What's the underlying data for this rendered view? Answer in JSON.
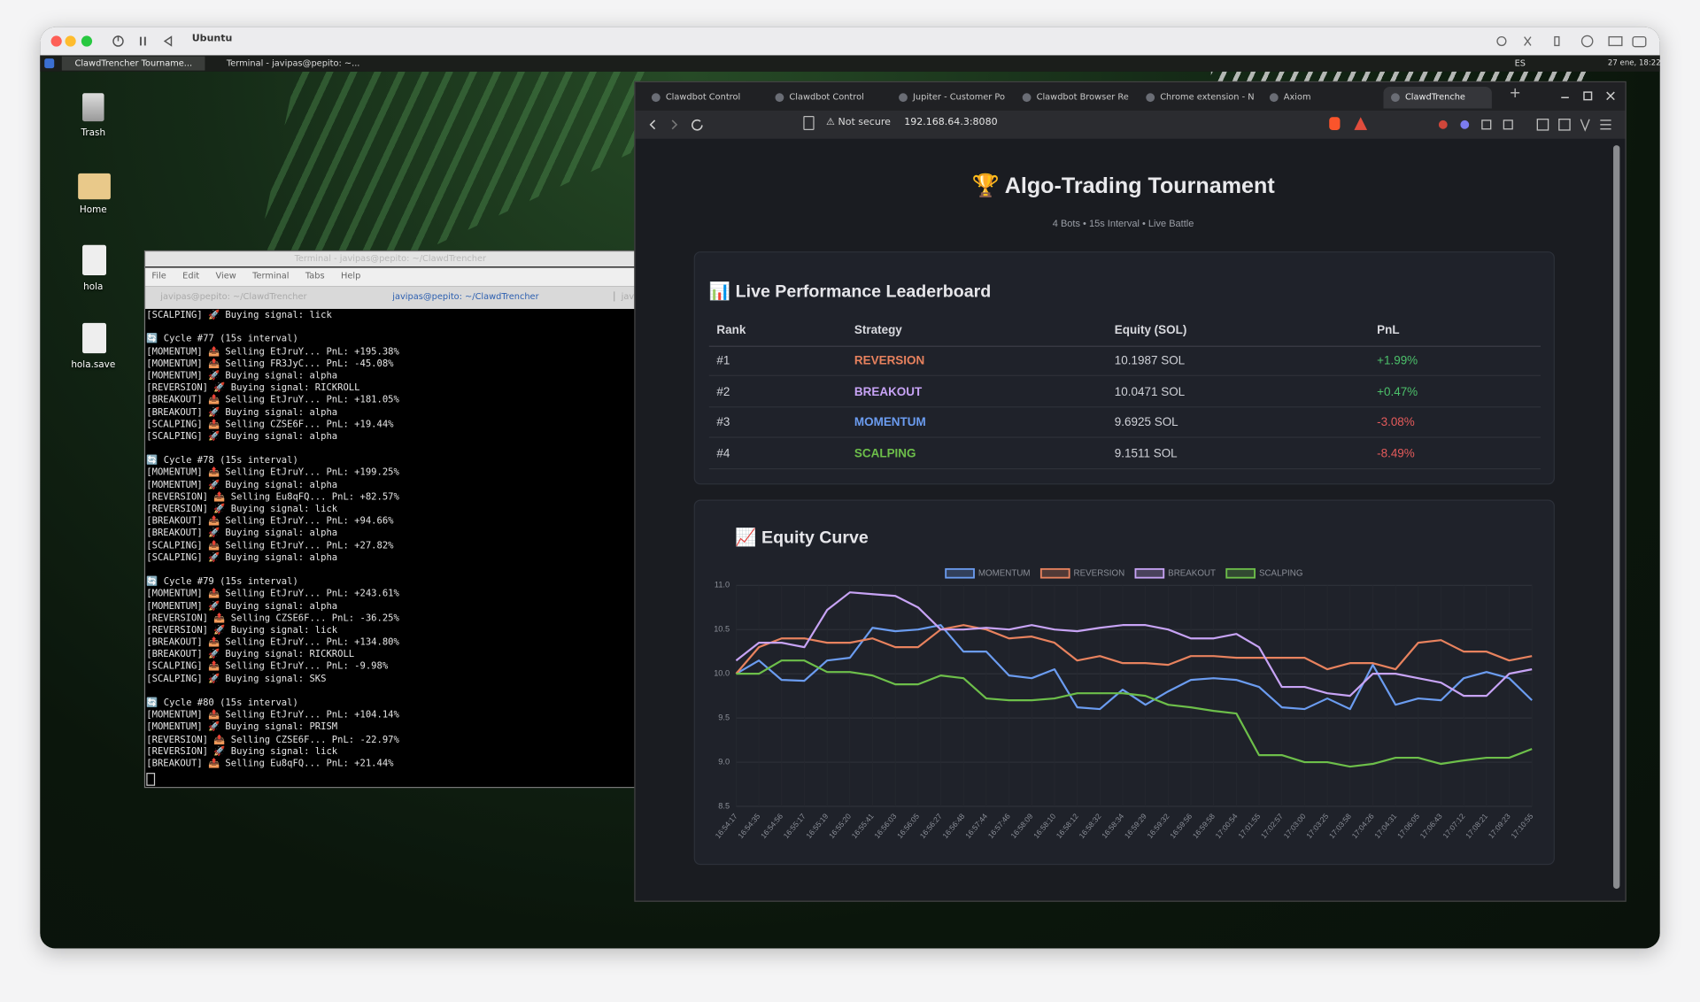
{
  "mac_bar": {
    "title": "Ubuntu"
  },
  "taskbar": {
    "items": [
      "ClawdTrencher Tourname...",
      "Terminal - javipas@pepito: ~..."
    ],
    "keyboard": "ES",
    "clock": "27 ene, 18:22"
  },
  "desktop_icons": [
    "Trash",
    "Home",
    "hola",
    "hola.save"
  ],
  "terminal": {
    "title": "Terminal - javipas@pepito: ~/ClawdTrencher",
    "menu": [
      "File",
      "Edit",
      "View",
      "Terminal",
      "Tabs",
      "Help"
    ],
    "tabs": [
      "javipas@pepito: ~/ClawdTrencher",
      "javipas@pepito: ~/ClawdTrencher",
      "jav"
    ],
    "blocks": [
      [
        "[SCALPING] 🚀 Buying signal: lick"
      ],
      [
        "🔄 Cycle #77 (15s interval)",
        "[MOMENTUM] 📤 Selling EtJruY... PnL: +195.38%",
        "[MOMENTUM] 📤 Selling FR3JyC... PnL: -45.08%",
        "[MOMENTUM] 🚀 Buying signal: alpha",
        "[REVERSION] 🚀 Buying signal: RICKROLL",
        "[BREAKOUT] 📤 Selling EtJruY... PnL: +181.05%",
        "[BREAKOUT] 🚀 Buying signal: alpha",
        "[SCALPING] 📤 Selling CZSE6F... PnL: +19.44%",
        "[SCALPING] 🚀 Buying signal: alpha"
      ],
      [
        "🔄 Cycle #78 (15s interval)",
        "[MOMENTUM] 📤 Selling EtJruY... PnL: +199.25%",
        "[MOMENTUM] 🚀 Buying signal: alpha",
        "[REVERSION] 📤 Selling Eu8qFQ... PnL: +82.57%",
        "[REVERSION] 🚀 Buying signal: lick",
        "[BREAKOUT] 📤 Selling EtJruY... PnL: +94.66%",
        "[BREAKOUT] 🚀 Buying signal: alpha",
        "[SCALPING] 📤 Selling EtJruY... PnL: +27.82%",
        "[SCALPING] 🚀 Buying signal: alpha"
      ],
      [
        "🔄 Cycle #79 (15s interval)",
        "[MOMENTUM] 📤 Selling EtJruY... PnL: +243.61%",
        "[MOMENTUM] 🚀 Buying signal: alpha",
        "[REVERSION] 📤 Selling CZSE6F... PnL: -36.25%",
        "[REVERSION] 🚀 Buying signal: lick",
        "[BREAKOUT] 📤 Selling EtJruY... PnL: +134.80%",
        "[BREAKOUT] 🚀 Buying signal: RICKROLL",
        "[SCALPING] 📤 Selling EtJruY... PnL: -9.98%",
        "[SCALPING] 🚀 Buying signal: SKS"
      ],
      [
        "🔄 Cycle #80 (15s interval)",
        "[MOMENTUM] 📤 Selling EtJruY... PnL: +104.14%",
        "[MOMENTUM] 🚀 Buying signal: PRISM",
        "[REVERSION] 📤 Selling CZSE6F... PnL: -22.97%",
        "[REVERSION] 🚀 Buying signal: lick",
        "[BREAKOUT] 📤 Selling Eu8qFQ... PnL: +21.44%"
      ]
    ]
  },
  "browser": {
    "tabs": [
      "Clawdbot Control",
      "Clawdbot Control",
      "Jupiter - Customer Po",
      "Clawdbot Browser Re",
      "Chrome extension - N",
      "Axiom",
      "ClawdTrenche"
    ],
    "security": "Not secure",
    "url": "192.168.64.3:8080"
  },
  "page": {
    "title": "🏆 Algo-Trading Tournament",
    "subtitle": "4 Bots • 15s Interval • Live Battle",
    "leaderboard": {
      "heading": "📊 Live Performance Leaderboard",
      "columns": [
        "Rank",
        "Strategy",
        "Equity (SOL)",
        "PnL"
      ],
      "rows": [
        [
          "#1",
          "REVERSION",
          "10.1987 SOL",
          "+1.99%"
        ],
        [
          "#2",
          "BREAKOUT",
          "10.0471 SOL",
          "+0.47%"
        ],
        [
          "#3",
          "MOMENTUM",
          "9.6925 SOL",
          "-3.08%"
        ],
        [
          "#4",
          "SCALPING",
          "9.1511 SOL",
          "-8.49%"
        ]
      ]
    }
  },
  "equity_chart": {
    "type": "line",
    "title": "📈 Equity Curve",
    "categories": [
      "16:54:17",
      "16:54:35",
      "16:54:56",
      "16:55:17",
      "16:55:19",
      "16:55:20",
      "16:55:41",
      "16:56:03",
      "16:56:05",
      "16:56:27",
      "16:56:48",
      "16:57:44",
      "16:57:46",
      "16:58:09",
      "16:58:10",
      "16:58:12",
      "16:58:32",
      "16:58:34",
      "16:59:29",
      "16:59:32",
      "16:59:56",
      "16:59:58",
      "17:00:54",
      "17:01:55",
      "17:02:57",
      "17:03:00",
      "17:03:25",
      "17:03:58",
      "17:04:26",
      "17:04:31",
      "17:06:05",
      "17:06:43",
      "17:07:12",
      "17:08:21",
      "17:09:23",
      "17:10:55"
    ],
    "series": [
      {
        "name": "MOMENTUM",
        "color": "#6b9cf0",
        "values": [
          10.0,
          10.15,
          9.93,
          9.92,
          10.15,
          10.18,
          10.52,
          10.48,
          10.5,
          10.55,
          10.25,
          10.25,
          9.98,
          9.95,
          10.05,
          9.62,
          9.6,
          9.82,
          9.65,
          9.8,
          9.93,
          9.95,
          9.93,
          9.85,
          9.62,
          9.6,
          9.72,
          9.6,
          10.1,
          9.65,
          9.72,
          9.7,
          9.95,
          10.02,
          9.95,
          9.7
        ]
      },
      {
        "name": "REVERSION",
        "color": "#e8825e",
        "values": [
          10.0,
          10.3,
          10.4,
          10.4,
          10.35,
          10.35,
          10.4,
          10.3,
          10.3,
          10.5,
          10.55,
          10.5,
          10.4,
          10.42,
          10.35,
          10.15,
          10.2,
          10.12,
          10.12,
          10.1,
          10.2,
          10.2,
          10.18,
          10.18,
          10.18,
          10.18,
          10.05,
          10.12,
          10.12,
          10.05,
          10.35,
          10.38,
          10.25,
          10.25,
          10.15,
          10.2
        ]
      },
      {
        "name": "BREAKOUT",
        "color": "#c7a3f5",
        "values": [
          10.15,
          10.35,
          10.35,
          10.3,
          10.72,
          10.92,
          10.9,
          10.88,
          10.75,
          10.5,
          10.5,
          10.52,
          10.5,
          10.55,
          10.5,
          10.48,
          10.52,
          10.55,
          10.55,
          10.5,
          10.4,
          10.4,
          10.45,
          10.3,
          9.85,
          9.85,
          9.78,
          9.75,
          10.0,
          10.0,
          9.95,
          9.9,
          9.75,
          9.75,
          10.0,
          10.05
        ]
      },
      {
        "name": "SCALPING",
        "color": "#6dbf4a",
        "values": [
          10.0,
          10.0,
          10.15,
          10.15,
          10.02,
          10.02,
          9.98,
          9.88,
          9.88,
          9.98,
          9.95,
          9.72,
          9.7,
          9.7,
          9.72,
          9.78,
          9.78,
          9.78,
          9.75,
          9.65,
          9.62,
          9.58,
          9.55,
          9.08,
          9.08,
          9.0,
          9.0,
          8.95,
          8.98,
          9.05,
          9.05,
          8.98,
          9.02,
          9.05,
          9.05,
          9.15
        ]
      }
    ],
    "ylim": [
      8.5,
      11.0
    ],
    "yticks": [
      8.5,
      {
        "value": 9.0,
        "label": "9.0"
      },
      9.5,
      {
        "value": 10.0,
        "label": "10.0"
      },
      10.5,
      {
        "value": 11.0,
        "label": "11.0"
      }
    ],
    "grid": true,
    "legend": "top"
  }
}
